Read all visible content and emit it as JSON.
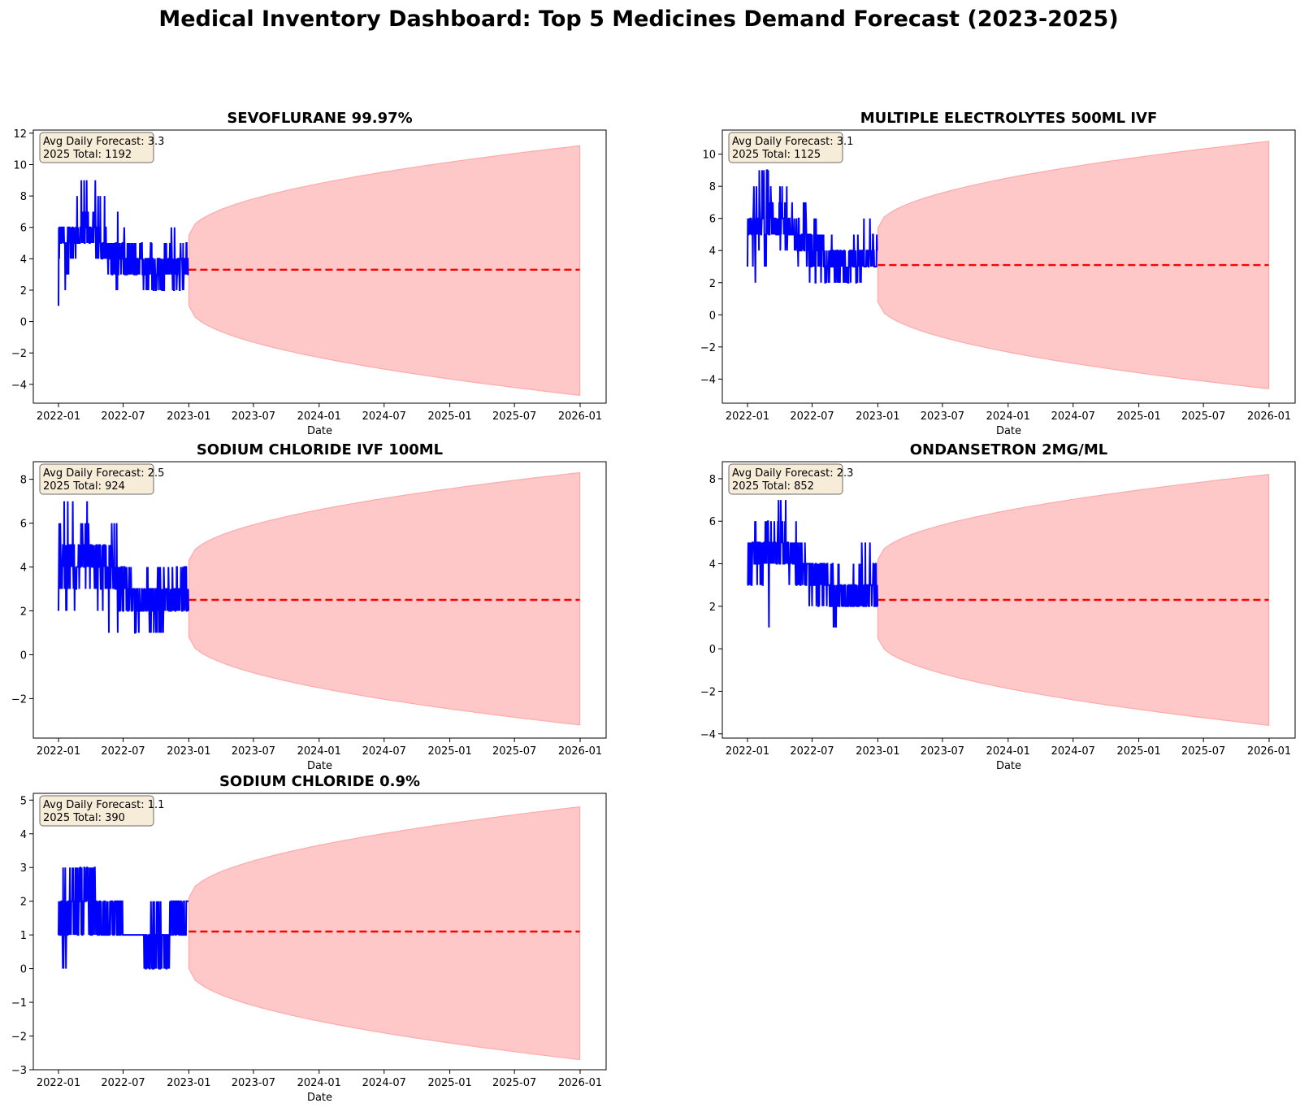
{
  "title": "Medical Inventory Dashboard: Top 5 Medicines Demand Forecast (2023-2025)",
  "colors": {
    "history": "#0000ff",
    "forecast": "#ff0000",
    "band_fill": "#ffc8c8",
    "band_edge": "#ffaaaa",
    "annotation_bg": "#f7ecd8"
  },
  "chart_data": [
    {
      "type": "line",
      "title": "SEVOFLURANE 99.97%",
      "xlabel": "Date",
      "ylabel": "",
      "x_ticks": [
        "2022-01",
        "2022-07",
        "2023-01",
        "2023-07",
        "2024-01",
        "2024-07",
        "2025-01",
        "2025-07",
        "2026-01"
      ],
      "y_ticks": [
        -4,
        -2,
        0,
        2,
        4,
        6,
        8,
        10,
        12
      ],
      "ylim": [
        -5.2,
        12.2
      ],
      "history_range": [
        "2022-01-01",
        "2022-12-31"
      ],
      "history_level": [
        [
          0,
          5.2
        ],
        [
          3,
          5.6
        ],
        [
          5,
          4.2
        ],
        [
          7,
          3.6
        ],
        [
          9,
          3.3
        ],
        [
          12,
          3.6
        ]
      ],
      "history_min": [
        [
          0,
          1
        ],
        [
          1,
          3
        ],
        [
          3,
          4
        ],
        [
          5,
          3
        ],
        [
          6,
          1
        ],
        [
          7,
          2
        ],
        [
          9,
          2
        ],
        [
          12,
          2
        ]
      ],
      "history_max": [
        [
          0,
          7
        ],
        [
          1,
          8
        ],
        [
          3,
          9
        ],
        [
          4,
          8
        ],
        [
          5,
          7
        ],
        [
          6,
          6
        ],
        [
          7,
          5
        ],
        [
          9,
          5
        ],
        [
          11,
          6
        ],
        [
          12,
          5
        ]
      ],
      "forecast": {
        "start": "2023-01-01",
        "end": "2025-12-31",
        "mean": 3.3,
        "lower_start": 1.0,
        "lower_end": -4.7,
        "upper_start": 5.5,
        "upper_end": 11.2
      },
      "annotation": [
        "Avg Daily Forecast: 3.3",
        "2025 Total: 1192"
      ]
    },
    {
      "type": "line",
      "title": "MULTIPLE ELECTROLYTES 500ML IVF",
      "xlabel": "Date",
      "ylabel": "",
      "x_ticks": [
        "2022-01",
        "2022-07",
        "2023-01",
        "2023-07",
        "2024-01",
        "2024-07",
        "2025-01",
        "2025-07",
        "2026-01"
      ],
      "y_ticks": [
        -4,
        -2,
        0,
        2,
        4,
        6,
        8,
        10
      ],
      "ylim": [
        -5.5,
        11.5
      ],
      "history_range": [
        "2022-01-01",
        "2022-12-31"
      ],
      "history_level": [
        [
          0,
          5.5
        ],
        [
          3,
          5.8
        ],
        [
          5,
          4.6
        ],
        [
          7,
          3.4
        ],
        [
          9,
          3.1
        ],
        [
          12,
          3.8
        ]
      ],
      "history_min": [
        [
          0,
          3
        ],
        [
          1,
          2
        ],
        [
          3,
          4
        ],
        [
          4,
          3
        ],
        [
          6,
          2
        ],
        [
          9,
          2
        ],
        [
          12,
          3
        ]
      ],
      "history_max": [
        [
          0,
          6
        ],
        [
          1,
          9
        ],
        [
          3,
          8
        ],
        [
          5,
          7
        ],
        [
          6,
          6
        ],
        [
          7,
          5
        ],
        [
          9,
          4
        ],
        [
          11,
          6
        ],
        [
          12,
          5
        ]
      ],
      "forecast": {
        "start": "2023-01-01",
        "end": "2025-12-31",
        "mean": 3.1,
        "lower_start": 0.8,
        "lower_end": -4.6,
        "upper_start": 5.4,
        "upper_end": 10.8
      },
      "annotation": [
        "Avg Daily Forecast: 3.1",
        "2025 Total: 1125"
      ]
    },
    {
      "type": "line",
      "title": "SODIUM CHLORIDE IVF 100ML",
      "xlabel": "Date",
      "ylabel": "",
      "x_ticks": [
        "2022-01",
        "2022-07",
        "2023-01",
        "2023-07",
        "2024-01",
        "2024-07",
        "2025-01",
        "2025-07",
        "2026-01"
      ],
      "y_ticks": [
        -2,
        0,
        2,
        4,
        6,
        8
      ],
      "ylim": [
        -3.8,
        8.8
      ],
      "history_range": [
        "2022-01-01",
        "2022-12-31"
      ],
      "history_level": [
        [
          0,
          4.0
        ],
        [
          3,
          4.6
        ],
        [
          5,
          3.8
        ],
        [
          7,
          2.6
        ],
        [
          9,
          2.4
        ],
        [
          12,
          3.2
        ]
      ],
      "history_min": [
        [
          0,
          2
        ],
        [
          1,
          2
        ],
        [
          3,
          3
        ],
        [
          5,
          1
        ],
        [
          6,
          2
        ],
        [
          8,
          1
        ],
        [
          12,
          2
        ]
      ],
      "history_max": [
        [
          0,
          6
        ],
        [
          1,
          7
        ],
        [
          3,
          7
        ],
        [
          5,
          6
        ],
        [
          6,
          5
        ],
        [
          7,
          3
        ],
        [
          9,
          4
        ],
        [
          12,
          4
        ]
      ],
      "forecast": {
        "start": "2023-01-01",
        "end": "2025-12-31",
        "mean": 2.5,
        "lower_start": 0.8,
        "lower_end": -3.2,
        "upper_start": 4.3,
        "upper_end": 8.3
      },
      "annotation": [
        "Avg Daily Forecast: 2.5",
        "2025 Total: 924"
      ]
    },
    {
      "type": "line",
      "title": "ONDANSETRON 2MG/ML",
      "xlabel": "Date",
      "ylabel": "",
      "x_ticks": [
        "2022-01",
        "2022-07",
        "2023-01",
        "2023-07",
        "2024-01",
        "2024-07",
        "2025-01",
        "2025-07",
        "2026-01"
      ],
      "y_ticks": [
        -4,
        -2,
        0,
        2,
        4,
        6,
        8
      ],
      "ylim": [
        -4.2,
        8.8
      ],
      "history_range": [
        "2022-01-01",
        "2022-12-31"
      ],
      "history_level": [
        [
          0,
          4.0
        ],
        [
          3,
          4.8
        ],
        [
          5,
          4.0
        ],
        [
          7,
          3.0
        ],
        [
          9,
          2.4
        ],
        [
          12,
          3.0
        ]
      ],
      "history_min": [
        [
          0,
          3
        ],
        [
          1,
          1
        ],
        [
          2,
          1
        ],
        [
          3,
          3
        ],
        [
          5,
          3
        ],
        [
          6,
          2
        ],
        [
          8,
          1
        ],
        [
          9,
          2
        ],
        [
          12,
          2
        ]
      ],
      "history_max": [
        [
          0,
          5
        ],
        [
          1,
          6
        ],
        [
          3,
          7
        ],
        [
          5,
          6
        ],
        [
          6,
          4
        ],
        [
          8,
          4
        ],
        [
          9,
          3
        ],
        [
          11,
          5
        ],
        [
          12,
          4
        ]
      ],
      "forecast": {
        "start": "2023-01-01",
        "end": "2025-12-31",
        "mean": 2.3,
        "lower_start": 0.5,
        "lower_end": -3.6,
        "upper_start": 4.2,
        "upper_end": 8.2
      },
      "annotation": [
        "Avg Daily Forecast: 2.3",
        "2025 Total: 852"
      ]
    },
    {
      "type": "line",
      "title": "SODIUM CHLORIDE 0.9%",
      "xlabel": "Date",
      "ylabel": "",
      "x_ticks": [
        "2022-01",
        "2022-07",
        "2023-01",
        "2023-07",
        "2024-01",
        "2024-07",
        "2025-01",
        "2025-07",
        "2026-01"
      ],
      "y_ticks": [
        -3,
        -2,
        -1,
        0,
        1,
        2,
        3,
        4,
        5
      ],
      "ylim": [
        -3.0,
        5.2
      ],
      "history_range": [
        "2022-01-01",
        "2022-12-31"
      ],
      "history_level": [
        [
          0,
          1.4
        ],
        [
          1,
          1.7
        ],
        [
          3,
          1.8
        ],
        [
          5,
          1.6
        ],
        [
          7,
          1.2
        ],
        [
          9,
          0.9
        ],
        [
          10,
          1.5
        ],
        [
          12,
          1.6
        ]
      ],
      "history_min": [
        [
          0,
          1
        ],
        [
          0.5,
          0
        ],
        [
          1,
          1
        ],
        [
          7.8,
          1
        ],
        [
          8,
          0
        ],
        [
          10,
          0
        ],
        [
          10.5,
          1
        ],
        [
          12,
          1
        ]
      ],
      "history_max": [
        [
          0,
          2
        ],
        [
          0.5,
          3
        ],
        [
          3,
          3
        ],
        [
          4,
          2
        ],
        [
          8,
          1
        ],
        [
          9,
          2
        ],
        [
          10,
          1
        ],
        [
          10.5,
          2
        ],
        [
          12,
          2
        ]
      ],
      "forecast": {
        "start": "2023-01-01",
        "end": "2025-12-31",
        "mean": 1.1,
        "lower_start": 0.0,
        "lower_end": -2.7,
        "upper_start": 2.1,
        "upper_end": 4.8
      },
      "annotation": [
        "Avg Daily Forecast: 1.1",
        "2025 Total: 390"
      ]
    }
  ]
}
